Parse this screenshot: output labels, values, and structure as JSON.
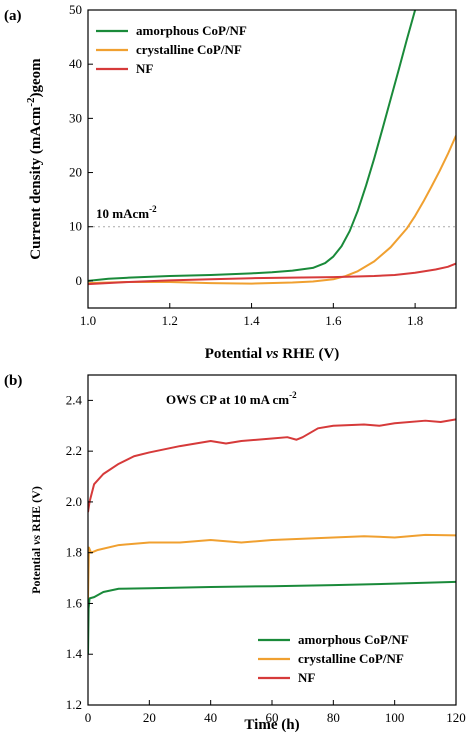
{
  "chart_data": [
    {
      "panel_label": "(a)",
      "type": "line",
      "xlabel_prefix": "Potential ",
      "xlabel_italic": "vs",
      "xlabel_suffix": " RHE (V)",
      "ylabel_main": "Current density (mAcm",
      "ylabel_sup": "-2",
      "ylabel_end": ")geom",
      "xlim": [
        1.0,
        1.9
      ],
      "ylim": [
        -5,
        50
      ],
      "xticks": [
        "1.0",
        "1.2",
        "1.4",
        "1.6",
        "1.8"
      ],
      "xtick_values": [
        1.0,
        1.2,
        1.4,
        1.6,
        1.8
      ],
      "yticks": [
        "0",
        "10",
        "20",
        "30",
        "40",
        "50"
      ],
      "ytick_values": [
        0,
        10,
        20,
        30,
        40,
        50
      ],
      "annotation_main": "10 mAcm",
      "annotation_sup": "-2",
      "reference_line_y": 10,
      "legend_position": "top-left",
      "series": [
        {
          "name": "amorphous CoP/NF",
          "color": "#1a8a3a",
          "points": [
            [
              1.0,
              0.0
            ],
            [
              1.05,
              0.4
            ],
            [
              1.1,
              0.6
            ],
            [
              1.2,
              0.9
            ],
            [
              1.3,
              1.1
            ],
            [
              1.4,
              1.4
            ],
            [
              1.45,
              1.6
            ],
            [
              1.5,
              1.9
            ],
            [
              1.55,
              2.4
            ],
            [
              1.58,
              3.3
            ],
            [
              1.6,
              4.5
            ],
            [
              1.62,
              6.4
            ],
            [
              1.64,
              9.2
            ],
            [
              1.66,
              13.0
            ],
            [
              1.68,
              17.6
            ],
            [
              1.7,
              22.6
            ],
            [
              1.72,
              28.0
            ],
            [
              1.74,
              33.5
            ],
            [
              1.76,
              39.0
            ],
            [
              1.78,
              44.6
            ],
            [
              1.8,
              50.0
            ]
          ]
        },
        {
          "name": "crystalline CoP/NF",
          "color": "#f0a030",
          "points": [
            [
              1.0,
              -0.4
            ],
            [
              1.05,
              -0.3
            ],
            [
              1.1,
              -0.2
            ],
            [
              1.2,
              -0.2
            ],
            [
              1.3,
              -0.4
            ],
            [
              1.4,
              -0.5
            ],
            [
              1.5,
              -0.3
            ],
            [
              1.55,
              -0.1
            ],
            [
              1.6,
              0.3
            ],
            [
              1.63,
              0.9
            ],
            [
              1.66,
              1.8
            ],
            [
              1.7,
              3.6
            ],
            [
              1.74,
              6.2
            ],
            [
              1.78,
              9.7
            ],
            [
              1.8,
              12.0
            ],
            [
              1.82,
              14.6
            ],
            [
              1.84,
              17.4
            ],
            [
              1.86,
              20.3
            ],
            [
              1.88,
              23.4
            ],
            [
              1.9,
              26.8
            ]
          ]
        },
        {
          "name": "NF",
          "color": "#d63a3a",
          "points": [
            [
              1.0,
              -0.6
            ],
            [
              1.1,
              -0.2
            ],
            [
              1.2,
              0.1
            ],
            [
              1.3,
              0.3
            ],
            [
              1.4,
              0.5
            ],
            [
              1.5,
              0.6
            ],
            [
              1.6,
              0.7
            ],
            [
              1.7,
              0.9
            ],
            [
              1.75,
              1.1
            ],
            [
              1.8,
              1.5
            ],
            [
              1.85,
              2.1
            ],
            [
              1.88,
              2.6
            ],
            [
              1.9,
              3.2
            ]
          ]
        }
      ]
    },
    {
      "panel_label": "(b)",
      "type": "line",
      "title_main": "OWS CP at 10 mA cm",
      "title_sup": "-2",
      "xlabel": "Time (h)",
      "ylabel_prefix": "Potential ",
      "ylabel_italic": "vs",
      "ylabel_suffix": " RHE (V)",
      "xlim": [
        0,
        120
      ],
      "ylim": [
        1.2,
        2.5
      ],
      "xticks": [
        "0",
        "20",
        "40",
        "60",
        "80",
        "100",
        "120"
      ],
      "xtick_values": [
        0,
        20,
        40,
        60,
        80,
        100,
        120
      ],
      "yticks": [
        "1.2",
        "1.4",
        "1.6",
        "1.8",
        "2.0",
        "2.2",
        "2.4"
      ],
      "ytick_values": [
        1.2,
        1.4,
        1.6,
        1.8,
        2.0,
        2.2,
        2.4
      ],
      "legend_position": "bottom-right",
      "series": [
        {
          "name": "amorphous CoP/NF",
          "color": "#1a8a3a",
          "points": [
            [
              0,
              1.4
            ],
            [
              0.2,
              1.58
            ],
            [
              0.5,
              1.62
            ],
            [
              2,
              1.625
            ],
            [
              5,
              1.645
            ],
            [
              10,
              1.658
            ],
            [
              20,
              1.66
            ],
            [
              40,
              1.665
            ],
            [
              60,
              1.668
            ],
            [
              80,
              1.672
            ],
            [
              100,
              1.678
            ],
            [
              120,
              1.685
            ]
          ]
        },
        {
          "name": "crystalline CoP/NF",
          "color": "#f0a030",
          "points": [
            [
              0,
              1.62
            ],
            [
              0.3,
              1.82
            ],
            [
              1,
              1.8
            ],
            [
              3,
              1.81
            ],
            [
              10,
              1.83
            ],
            [
              20,
              1.84
            ],
            [
              30,
              1.84
            ],
            [
              40,
              1.85
            ],
            [
              50,
              1.84
            ],
            [
              60,
              1.85
            ],
            [
              70,
              1.855
            ],
            [
              80,
              1.86
            ],
            [
              90,
              1.865
            ],
            [
              100,
              1.86
            ],
            [
              110,
              1.87
            ],
            [
              120,
              1.868
            ]
          ]
        },
        {
          "name": "NF",
          "color": "#d63a3a",
          "points": [
            [
              0,
              1.96
            ],
            [
              0.5,
              2.0
            ],
            [
              2,
              2.07
            ],
            [
              5,
              2.11
            ],
            [
              10,
              2.15
            ],
            [
              15,
              2.18
            ],
            [
              20,
              2.195
            ],
            [
              30,
              2.22
            ],
            [
              40,
              2.24
            ],
            [
              45,
              2.23
            ],
            [
              50,
              2.24
            ],
            [
              60,
              2.25
            ],
            [
              65,
              2.255
            ],
            [
              68,
              2.245
            ],
            [
              70,
              2.255
            ],
            [
              75,
              2.29
            ],
            [
              80,
              2.3
            ],
            [
              90,
              2.305
            ],
            [
              95,
              2.3
            ],
            [
              100,
              2.31
            ],
            [
              110,
              2.32
            ],
            [
              115,
              2.315
            ],
            [
              120,
              2.325
            ]
          ]
        }
      ]
    }
  ]
}
